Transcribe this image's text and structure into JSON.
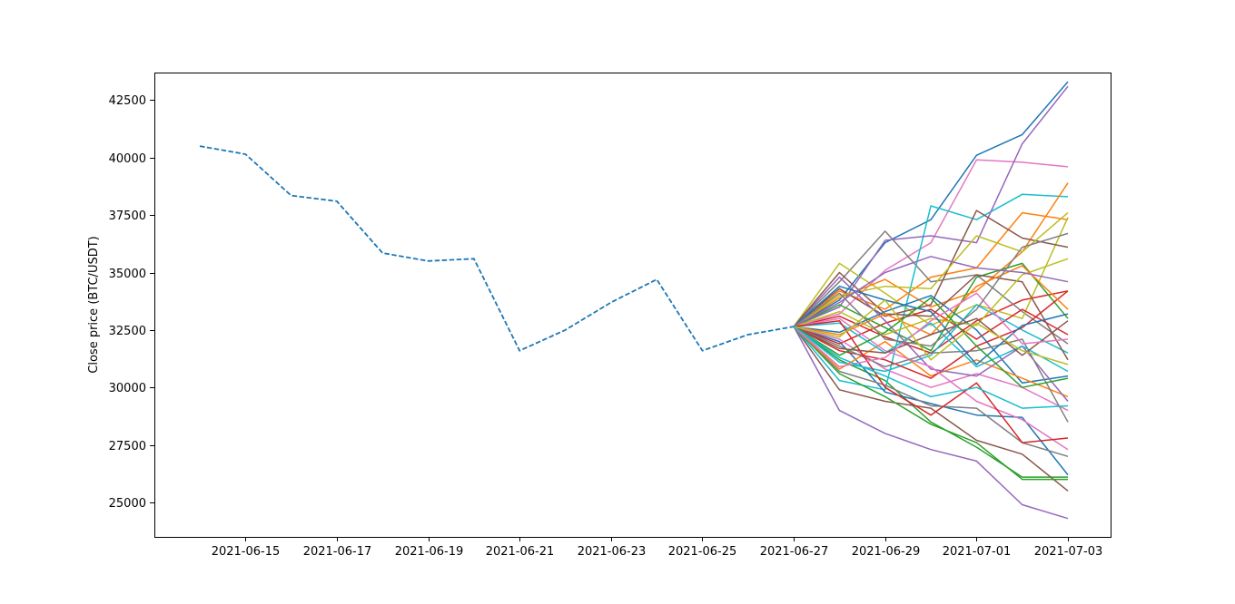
{
  "chart_data": {
    "type": "line",
    "title": "",
    "xlabel": "",
    "ylabel": "Close price (BTC/USDT)",
    "xlim": [
      "2021-06-13",
      "2021-07-03"
    ],
    "ylim": [
      23500,
      43700
    ],
    "grid": false,
    "legend": "none",
    "x_ticks": [
      "2021-06-15",
      "2021-06-17",
      "2021-06-19",
      "2021-06-21",
      "2021-06-23",
      "2021-06-25",
      "2021-06-27",
      "2021-06-29",
      "2021-07-01",
      "2021-07-03"
    ],
    "y_ticks": [
      25000,
      27500,
      30000,
      32500,
      35000,
      37500,
      40000,
      42500
    ],
    "history": {
      "style": "dashed",
      "color": "#1f77b4",
      "x": [
        "2021-06-14",
        "2021-06-15",
        "2021-06-16",
        "2021-06-17",
        "2021-06-18",
        "2021-06-19",
        "2021-06-20",
        "2021-06-21",
        "2021-06-22",
        "2021-06-23",
        "2021-06-24",
        "2021-06-25",
        "2021-06-26",
        "2021-06-27"
      ],
      "values": [
        40500,
        40150,
        38350,
        38100,
        35850,
        35500,
        35600,
        31600,
        32500,
        33700,
        34700,
        31600,
        32300,
        32650
      ]
    },
    "simulation": {
      "style": "solid",
      "palette": [
        "#1f77b4",
        "#ff7f0e",
        "#2ca02c",
        "#d62728",
        "#9467bd",
        "#8c564b",
        "#e377c2",
        "#7f7f7f",
        "#bcbd22",
        "#17becf"
      ],
      "x": [
        "2021-06-27",
        "2021-06-28",
        "2021-06-29",
        "2021-06-30",
        "2021-07-01",
        "2021-07-02",
        "2021-07-03"
      ],
      "series": [
        {
          "values": [
            32650,
            33800,
            36300,
            37300,
            40100,
            41000,
            43300
          ]
        },
        {
          "values": [
            32650,
            34200,
            33400,
            34800,
            35200,
            37600,
            37300
          ]
        },
        {
          "values": [
            32650,
            31200,
            30300,
            28500,
            27400,
            26100,
            26100
          ]
        },
        {
          "values": [
            32650,
            33100,
            32200,
            31500,
            32900,
            33800,
            34200
          ]
        },
        {
          "values": [
            32650,
            29000,
            28000,
            27300,
            26800,
            24900,
            24300
          ]
        },
        {
          "values": [
            32650,
            29900,
            29400,
            29100,
            27700,
            27100,
            25500
          ]
        },
        {
          "values": [
            32650,
            33200,
            35100,
            36300,
            39900,
            39800,
            39600
          ]
        },
        {
          "values": [
            32650,
            34600,
            36800,
            34600,
            34900,
            33300,
            31900
          ]
        },
        {
          "values": [
            32650,
            35400,
            34100,
            32700,
            33600,
            33000,
            37400
          ]
        },
        {
          "values": [
            32650,
            30300,
            29900,
            37900,
            37300,
            38400,
            38300
          ]
        },
        {
          "values": [
            32650,
            32000,
            29800,
            29300,
            28800,
            28700,
            26200
          ]
        },
        {
          "values": [
            32650,
            33900,
            34700,
            33500,
            34200,
            35900,
            38900
          ]
        },
        {
          "values": [
            32650,
            30600,
            29600,
            28400,
            27600,
            26000,
            26000
          ]
        },
        {
          "values": [
            32650,
            31900,
            32800,
            33400,
            32100,
            33400,
            32300
          ]
        },
        {
          "values": [
            32650,
            33500,
            36400,
            36600,
            36300,
            40600,
            43100
          ]
        },
        {
          "values": [
            32650,
            34300,
            33100,
            33600,
            37700,
            36500,
            36100
          ]
        },
        {
          "values": [
            32650,
            32100,
            30800,
            30000,
            30600,
            30000,
            29000
          ]
        },
        {
          "values": [
            32650,
            30700,
            30100,
            29200,
            29100,
            27600,
            27000
          ]
        },
        {
          "values": [
            32650,
            34000,
            34400,
            34300,
            36600,
            35900,
            37600
          ]
        },
        {
          "values": [
            32650,
            31100,
            30700,
            31400,
            33600,
            32500,
            31500
          ]
        },
        {
          "values": [
            32650,
            32400,
            33300,
            34000,
            32500,
            30200,
            30500
          ]
        },
        {
          "values": [
            32650,
            30800,
            32000,
            30500,
            31200,
            30400,
            29600
          ]
        },
        {
          "values": [
            32650,
            33600,
            32600,
            31600,
            34800,
            35400,
            33000
          ]
        },
        {
          "values": [
            32650,
            31600,
            31200,
            30400,
            31800,
            32600,
            34200
          ]
        },
        {
          "values": [
            32650,
            34800,
            32900,
            30800,
            30500,
            31800,
            29400
          ]
        },
        {
          "values": [
            32650,
            35000,
            33200,
            33100,
            34900,
            34600,
            31200
          ]
        },
        {
          "values": [
            32650,
            33000,
            31600,
            30900,
            29400,
            28600,
            27300
          ]
        },
        {
          "values": [
            32650,
            31800,
            30900,
            31500,
            31600,
            32100,
            28500
          ]
        },
        {
          "values": [
            32650,
            33300,
            32300,
            33000,
            32700,
            34900,
            35600
          ]
        },
        {
          "values": [
            32650,
            32800,
            31500,
            32800,
            30900,
            31800,
            30700
          ]
        },
        {
          "values": [
            32650,
            34400,
            33800,
            33300,
            31000,
            32700,
            33200
          ]
        },
        {
          "values": [
            32650,
            32300,
            33200,
            32300,
            34400,
            35300,
            33400
          ]
        },
        {
          "values": [
            32650,
            31400,
            32400,
            33900,
            31800,
            30000,
            30400
          ]
        },
        {
          "values": [
            32650,
            32900,
            30000,
            28800,
            30200,
            27600,
            27800
          ]
        },
        {
          "values": [
            32650,
            33700,
            35000,
            35700,
            35200,
            35000,
            34600
          ]
        },
        {
          "values": [
            32650,
            31700,
            31500,
            32300,
            33000,
            31400,
            32900
          ]
        },
        {
          "values": [
            32650,
            30900,
            31300,
            32900,
            34100,
            31900,
            32100
          ]
        },
        {
          "values": [
            32650,
            34100,
            32100,
            31800,
            33400,
            36100,
            36700
          ]
        },
        {
          "values": [
            32650,
            32200,
            33800,
            31200,
            32800,
            31600,
            31000
          ]
        },
        {
          "values": [
            32650,
            31300,
            30500,
            29600,
            30000,
            29100,
            29200
          ]
        }
      ]
    }
  }
}
